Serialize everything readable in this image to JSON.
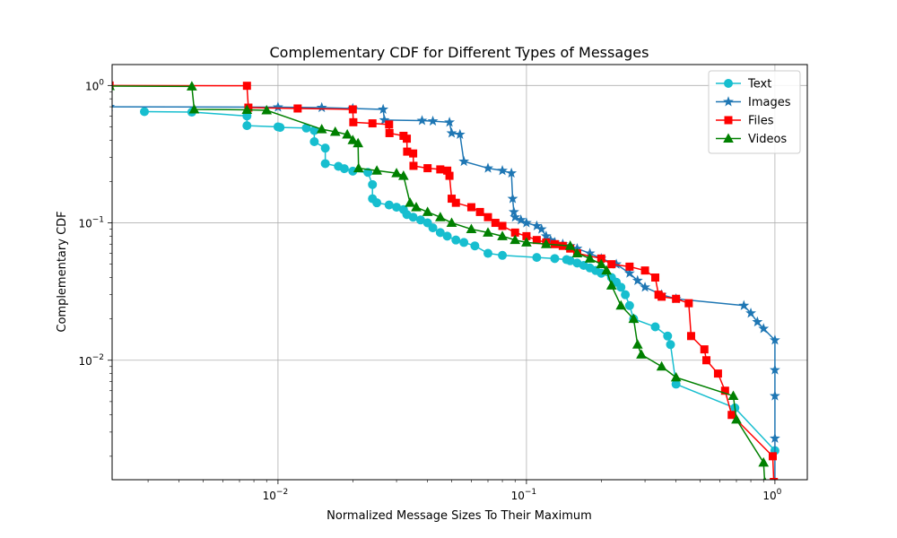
{
  "chart_data": {
    "type": "line",
    "title": "Complementary CDF for Different Types of Messages",
    "xlabel": "Normalized Message Sizes To Their Maximum",
    "ylabel": "Complementary CDF",
    "xscale": "log",
    "yscale": "log",
    "xlim": [
      0.00215,
      1.35
    ],
    "ylim": [
      0.00135,
      1.42
    ],
    "grid": true,
    "legend_position": "top-right",
    "x_ticks": [
      {
        "value": 0.01,
        "base": "10",
        "exp": "−2"
      },
      {
        "value": 0.1,
        "base": "10",
        "exp": "−1"
      },
      {
        "value": 1,
        "base": "10",
        "exp": "0"
      }
    ],
    "y_ticks": [
      {
        "value": 0.01,
        "base": "10",
        "exp": "−2"
      },
      {
        "value": 0.1,
        "base": "10",
        "exp": "−1"
      },
      {
        "value": 1,
        "base": "10",
        "exp": "0"
      }
    ],
    "series": [
      {
        "name": "Text",
        "color": "#17becf",
        "marker": "circle",
        "x": [
          0.0029,
          0.0045,
          0.0075,
          0.0075,
          0.01,
          0.0102,
          0.013,
          0.014,
          0.014,
          0.0155,
          0.0155,
          0.0175,
          0.0185,
          0.02,
          0.023,
          0.024,
          0.024,
          0.025,
          0.028,
          0.03,
          0.032,
          0.033,
          0.035,
          0.0375,
          0.04,
          0.042,
          0.045,
          0.048,
          0.052,
          0.056,
          0.062,
          0.07,
          0.08,
          0.11,
          0.13,
          0.145,
          0.15,
          0.16,
          0.17,
          0.18,
          0.19,
          0.2,
          0.22,
          0.23,
          0.24,
          0.25,
          0.26,
          0.27,
          0.33,
          0.37,
          0.38,
          0.4,
          0.69,
          1.0
        ],
        "y": [
          0.645,
          0.64,
          0.6,
          0.51,
          0.5,
          0.495,
          0.49,
          0.47,
          0.39,
          0.35,
          0.27,
          0.258,
          0.248,
          0.238,
          0.233,
          0.19,
          0.15,
          0.14,
          0.135,
          0.13,
          0.125,
          0.115,
          0.11,
          0.105,
          0.1,
          0.092,
          0.085,
          0.08,
          0.075,
          0.072,
          0.068,
          0.06,
          0.058,
          0.056,
          0.055,
          0.054,
          0.053,
          0.051,
          0.049,
          0.047,
          0.045,
          0.043,
          0.04,
          0.037,
          0.034,
          0.03,
          0.025,
          0.02,
          0.0175,
          0.015,
          0.013,
          0.0067,
          0.0045,
          0.0022
        ]
      },
      {
        "name": "Images",
        "color": "#1f77b4",
        "marker": "star",
        "x": [
          0.0021,
          0.01,
          0.015,
          0.02,
          0.0265,
          0.0268,
          0.038,
          0.042,
          0.049,
          0.05,
          0.054,
          0.056,
          0.07,
          0.08,
          0.087,
          0.088,
          0.089,
          0.09,
          0.095,
          0.1,
          0.11,
          0.115,
          0.12,
          0.125,
          0.13,
          0.14,
          0.15,
          0.16,
          0.18,
          0.2,
          0.23,
          0.26,
          0.28,
          0.3,
          0.35,
          0.4,
          0.75,
          0.8,
          0.85,
          0.9,
          1.0,
          1.0,
          1.0,
          1.0,
          1.0
        ],
        "y": [
          0.7,
          0.695,
          0.69,
          0.68,
          0.67,
          0.56,
          0.555,
          0.55,
          0.54,
          0.45,
          0.44,
          0.28,
          0.25,
          0.24,
          0.23,
          0.15,
          0.12,
          0.11,
          0.105,
          0.1,
          0.095,
          0.09,
          0.08,
          0.075,
          0.072,
          0.07,
          0.068,
          0.065,
          0.06,
          0.055,
          0.05,
          0.043,
          0.038,
          0.034,
          0.03,
          0.028,
          0.025,
          0.022,
          0.019,
          0.017,
          0.014,
          0.0085,
          0.0055,
          0.0027,
          0.0013
        ]
      },
      {
        "name": "Files",
        "color": "#ff0000",
        "marker": "square",
        "x": [
          0.0021,
          0.0075,
          0.0076,
          0.012,
          0.02,
          0.0201,
          0.024,
          0.028,
          0.0281,
          0.032,
          0.033,
          0.0331,
          0.035,
          0.0351,
          0.04,
          0.045,
          0.048,
          0.049,
          0.05,
          0.052,
          0.06,
          0.065,
          0.07,
          0.075,
          0.08,
          0.09,
          0.1,
          0.11,
          0.12,
          0.13,
          0.14,
          0.15,
          0.16,
          0.2,
          0.22,
          0.26,
          0.3,
          0.33,
          0.34,
          0.35,
          0.4,
          0.45,
          0.46,
          0.52,
          0.53,
          0.59,
          0.63,
          0.67,
          0.98,
          0.99
        ],
        "y": [
          1.0,
          0.995,
          0.69,
          0.68,
          0.67,
          0.54,
          0.53,
          0.52,
          0.45,
          0.43,
          0.41,
          0.33,
          0.32,
          0.26,
          0.25,
          0.245,
          0.24,
          0.22,
          0.15,
          0.14,
          0.13,
          0.12,
          0.11,
          0.1,
          0.095,
          0.085,
          0.08,
          0.075,
          0.072,
          0.07,
          0.068,
          0.065,
          0.06,
          0.055,
          0.05,
          0.048,
          0.045,
          0.04,
          0.03,
          0.029,
          0.028,
          0.026,
          0.015,
          0.012,
          0.01,
          0.008,
          0.006,
          0.004,
          0.002,
          0.0013
        ]
      },
      {
        "name": "Videos",
        "color": "#008000",
        "marker": "triangle",
        "x": [
          0.0021,
          0.0045,
          0.0046,
          0.0075,
          0.009,
          0.015,
          0.017,
          0.019,
          0.02,
          0.021,
          0.0211,
          0.025,
          0.03,
          0.032,
          0.034,
          0.036,
          0.04,
          0.045,
          0.05,
          0.06,
          0.07,
          0.08,
          0.09,
          0.1,
          0.12,
          0.15,
          0.16,
          0.18,
          0.2,
          0.21,
          0.22,
          0.24,
          0.27,
          0.28,
          0.29,
          0.35,
          0.4,
          0.68,
          0.7,
          0.9,
          0.91
        ],
        "y": [
          0.99,
          0.985,
          0.67,
          0.665,
          0.66,
          0.48,
          0.46,
          0.44,
          0.4,
          0.38,
          0.25,
          0.24,
          0.23,
          0.22,
          0.14,
          0.13,
          0.12,
          0.11,
          0.1,
          0.09,
          0.085,
          0.08,
          0.075,
          0.072,
          0.07,
          0.068,
          0.06,
          0.055,
          0.05,
          0.045,
          0.035,
          0.025,
          0.02,
          0.013,
          0.011,
          0.009,
          0.0075,
          0.0055,
          0.0037,
          0.0018,
          0.0013
        ]
      }
    ]
  }
}
